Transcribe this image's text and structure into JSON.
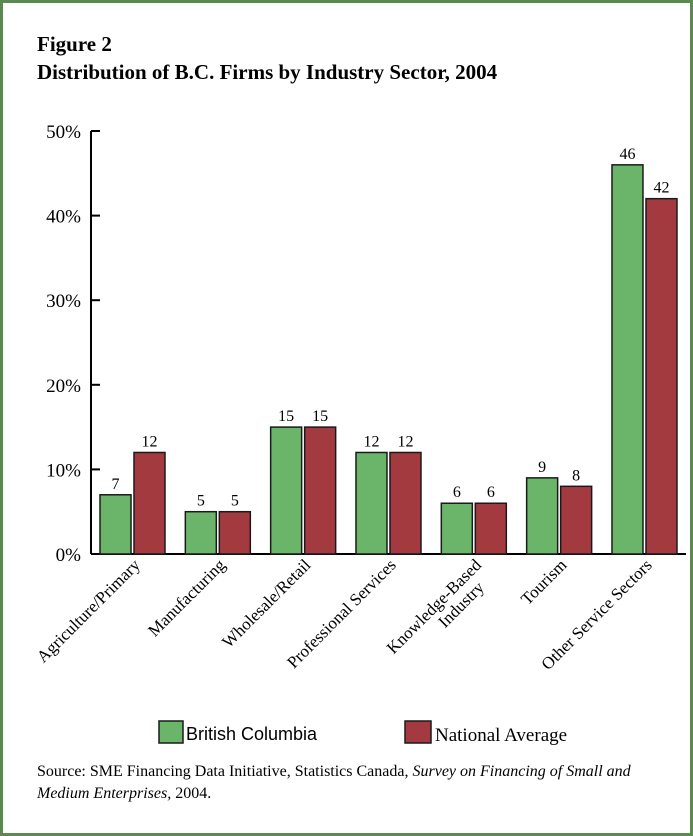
{
  "figure_label": "Figure 2",
  "colors": {
    "border": "#5a8a50",
    "british_columbia": "#6bb56b",
    "national_average": "#a33a40",
    "bar_outline": "#1a1a1a"
  },
  "source": {
    "prefix": "Source: SME Financing Data Initiative, Statistics Canada, ",
    "title_italic": "Survey on Financing of Small and Medium Enterprises,",
    "suffix": " 2004."
  },
  "chart_data": {
    "type": "bar",
    "title": "Distribution of B.C. Firms by Industry Sector, 2004",
    "xlabel": "",
    "ylabel": "",
    "ylim": [
      0,
      50
    ],
    "y_ticks": [
      0,
      10,
      20,
      30,
      40,
      50
    ],
    "y_tick_labels": [
      "0%",
      "10%",
      "20%",
      "30%",
      "40%",
      "50%"
    ],
    "grid": false,
    "legend_position": "bottom",
    "categories": [
      "Agriculture/Primary",
      "Manufacturing",
      "Wholesale/Retail",
      "Professional Services",
      "Knowledge-Based Industry",
      "Tourism",
      "Other Service Sectors"
    ],
    "category_label_lines": [
      [
        "Agriculture/Primary"
      ],
      [
        "Manufacturing"
      ],
      [
        "Wholesale/Retail"
      ],
      [
        "Professional Services"
      ],
      [
        "Knowledge-Based",
        "Industry"
      ],
      [
        "Tourism"
      ],
      [
        "Other Service Sectors"
      ]
    ],
    "series": [
      {
        "name": "British Columbia",
        "values": [
          7,
          5,
          15,
          12,
          6,
          9,
          46
        ]
      },
      {
        "name": "National Average",
        "values": [
          12,
          5,
          15,
          12,
          6,
          8,
          42
        ]
      }
    ]
  }
}
